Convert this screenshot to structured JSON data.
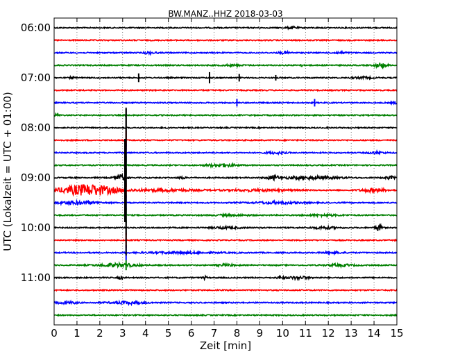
{
  "chart_data": {
    "type": "line",
    "title": "BW.MANZ..HHZ 2018-03-03",
    "xlabel": "Zeit  [min]",
    "ylabel": "UTC (Lokalzeit = UTC + 01:00)",
    "xlim": [
      0,
      15
    ],
    "x_ticks": [
      "0",
      "1",
      "2",
      "3",
      "4",
      "5",
      "6",
      "7",
      "8",
      "9",
      "10",
      "11",
      "12",
      "13",
      "14",
      "15"
    ],
    "y_ticks": [
      "06:00",
      "07:00",
      "08:00",
      "09:00",
      "10:00",
      "11:00"
    ],
    "grid": "vertical dotted",
    "trace_interval_min": 15,
    "trace_colors": [
      "#000000",
      "#ff0000",
      "#0000ff",
      "#008000"
    ],
    "traces": [
      {
        "start": "06:00",
        "events": [
          {
            "t": 10.4,
            "amp": 0.35,
            "w": 0.4
          }
        ]
      },
      {
        "start": "06:15",
        "events": []
      },
      {
        "start": "06:30",
        "events": [
          {
            "t": 4.2,
            "amp": 0.3,
            "w": 0.5
          },
          {
            "t": 10.1,
            "amp": 0.3,
            "w": 0.5
          },
          {
            "t": 12.5,
            "amp": 0.25,
            "w": 0.6
          }
        ]
      },
      {
        "start": "06:45",
        "events": [
          {
            "t": 7.8,
            "amp": 0.2,
            "w": 0.8
          },
          {
            "t": 10.8,
            "amp": 0.3,
            "w": 0.2
          },
          {
            "t": 14.3,
            "amp": 0.8,
            "w": 0.5
          }
        ]
      },
      {
        "start": "07:00",
        "events": [
          {
            "t": 0.8,
            "amp": 0.4,
            "w": 0.2
          },
          {
            "t": 3.7,
            "amp": 0.7,
            "w": 0.1
          },
          {
            "t": 6.8,
            "amp": 0.9,
            "w": 0.1
          },
          {
            "t": 8.1,
            "amp": 0.6,
            "w": 0.1
          },
          {
            "t": 9.7,
            "amp": 0.45,
            "w": 0.1
          },
          {
            "t": 13.5,
            "amp": 0.25,
            "w": 0.8
          }
        ]
      },
      {
        "start": "07:15",
        "events": []
      },
      {
        "start": "07:30",
        "events": [
          {
            "t": 8.0,
            "amp": 0.6,
            "w": 0.1
          },
          {
            "t": 11.4,
            "amp": 0.6,
            "w": 0.1
          },
          {
            "t": 14.9,
            "amp": 0.3,
            "w": 0.3
          }
        ]
      },
      {
        "start": "07:45",
        "events": [
          {
            "t": 0.1,
            "amp": 0.3,
            "w": 0.3
          }
        ]
      },
      {
        "start": "08:00",
        "events": [
          {
            "t": 3.15,
            "amp": 3.0,
            "w": 0.05
          },
          {
            "t": 4.7,
            "amp": 0.2,
            "w": 0.1
          }
        ]
      },
      {
        "start": "08:15",
        "events": [
          {
            "t": 3.15,
            "amp": 1.5,
            "w": 0.05
          }
        ]
      },
      {
        "start": "08:30",
        "events": [
          {
            "t": 3.15,
            "amp": 1.5,
            "w": 0.05
          },
          {
            "t": 9.7,
            "amp": 0.3,
            "w": 0.8
          },
          {
            "t": 14.1,
            "amp": 0.3,
            "w": 0.7
          }
        ]
      },
      {
        "start": "08:45",
        "events": [
          {
            "t": 3.15,
            "amp": 1.5,
            "w": 0.05
          },
          {
            "t": 7.3,
            "amp": 0.5,
            "w": 1.2
          }
        ]
      },
      {
        "start": "09:00",
        "events": [
          {
            "t": 2.9,
            "amp": 1.0,
            "w": 0.5
          },
          {
            "t": 3.15,
            "amp": 1.5,
            "w": 0.05
          },
          {
            "t": 5.6,
            "amp": 0.35,
            "w": 0.3
          },
          {
            "t": 9.6,
            "amp": 0.6,
            "w": 0.5
          },
          {
            "t": 11.2,
            "amp": 0.45,
            "w": 2.5
          },
          {
            "t": 14.7,
            "amp": 0.4,
            "w": 0.5
          }
        ]
      },
      {
        "start": "09:15",
        "events": [
          {
            "t": 1.5,
            "amp": 1.8,
            "w": 2.4
          },
          {
            "t": 3.15,
            "amp": 1.2,
            "w": 0.05
          },
          {
            "t": 4.8,
            "amp": 0.35,
            "w": 3.0
          },
          {
            "t": 9.0,
            "amp": 0.3,
            "w": 3.0
          },
          {
            "t": 14.0,
            "amp": 0.5,
            "w": 1.2
          }
        ]
      },
      {
        "start": "09:30",
        "events": [
          {
            "t": 1.0,
            "amp": 0.5,
            "w": 1.8
          },
          {
            "t": 3.15,
            "amp": 1.2,
            "w": 0.05
          },
          {
            "t": 9.8,
            "amp": 0.35,
            "w": 2.0
          }
        ]
      },
      {
        "start": "09:45",
        "events": [
          {
            "t": 3.15,
            "amp": 1.2,
            "w": 0.05
          },
          {
            "t": 7.8,
            "amp": 0.2,
            "w": 1.5
          },
          {
            "t": 11.8,
            "amp": 0.25,
            "w": 1.5
          }
        ]
      },
      {
        "start": "10:00",
        "events": [
          {
            "t": 3.15,
            "amp": 1.2,
            "w": 0.05
          },
          {
            "t": 7.5,
            "amp": 0.3,
            "w": 1.2
          },
          {
            "t": 11.8,
            "amp": 0.3,
            "w": 1.2
          },
          {
            "t": 14.2,
            "amp": 1.0,
            "w": 0.3
          }
        ]
      },
      {
        "start": "10:15",
        "events": [
          {
            "t": 3.15,
            "amp": 1.2,
            "w": 0.05
          }
        ]
      },
      {
        "start": "10:30",
        "events": [
          {
            "t": 3.15,
            "amp": 1.2,
            "w": 0.05
          },
          {
            "t": 5.5,
            "amp": 0.25,
            "w": 3.0
          },
          {
            "t": 12.2,
            "amp": 0.3,
            "w": 0.8
          }
        ]
      },
      {
        "start": "10:45",
        "events": [
          {
            "t": 2.8,
            "amp": 0.5,
            "w": 1.8
          },
          {
            "t": 3.15,
            "amp": 0.8,
            "w": 0.05
          },
          {
            "t": 7.5,
            "amp": 0.3,
            "w": 0.8
          },
          {
            "t": 12.5,
            "amp": 0.3,
            "w": 1.2
          }
        ]
      },
      {
        "start": "11:00",
        "events": [
          {
            "t": 2.9,
            "amp": 0.4,
            "w": 0.2
          },
          {
            "t": 6.6,
            "amp": 0.4,
            "w": 0.2
          },
          {
            "t": 9.9,
            "amp": 0.3,
            "w": 0.3
          },
          {
            "t": 10.7,
            "amp": 0.4,
            "w": 1.0
          }
        ]
      },
      {
        "start": "11:15",
        "events": []
      },
      {
        "start": "11:30",
        "events": [
          {
            "t": 0.5,
            "amp": 0.35,
            "w": 1.0
          },
          {
            "t": 3.2,
            "amp": 0.4,
            "w": 1.6
          }
        ]
      },
      {
        "start": "11:45",
        "events": []
      }
    ]
  }
}
